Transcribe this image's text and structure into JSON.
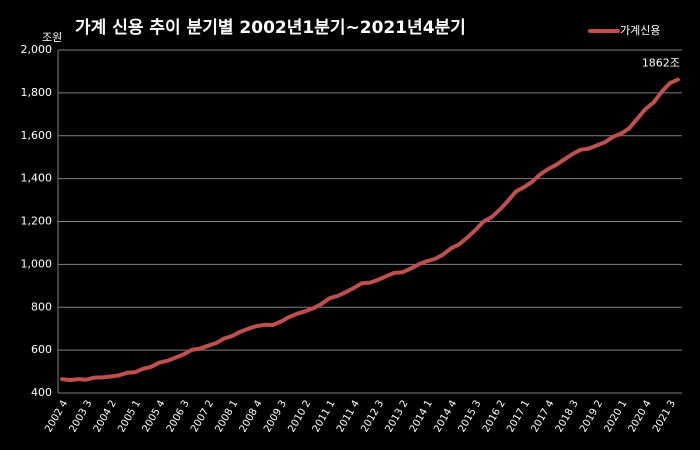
{
  "chart_data": {
    "type": "line",
    "title": "가계 신용 추이  분기별 2002년1분기~2021년4분기",
    "y_label": "조원",
    "categories": [
      "2002 4",
      null,
      null,
      "2003 3",
      null,
      null,
      "2004 2",
      null,
      null,
      "2005 1",
      null,
      null,
      "2005 4",
      null,
      null,
      "2006 3",
      null,
      null,
      "2007 2",
      null,
      null,
      "2008 1",
      null,
      null,
      "2008 4",
      null,
      null,
      "2009 3",
      null,
      null,
      "2010 2",
      null,
      null,
      "2011 1",
      null,
      null,
      "2011 4",
      null,
      null,
      "2012 3",
      null,
      null,
      "2013 2",
      null,
      null,
      "2014 1",
      null,
      null,
      "2014 4",
      null,
      null,
      "2015 3",
      null,
      null,
      "2016 2",
      null,
      null,
      "2017 1",
      null,
      null,
      "2017 4",
      null,
      null,
      "2018 3",
      null,
      null,
      "2019 2",
      null,
      null,
      "2020 1",
      null,
      null,
      "2020 4",
      null,
      null,
      "2021 3",
      null
    ],
    "series": [
      {
        "name": "가계신용",
        "color": "#c0504d",
        "values": [
          465,
          460,
          465,
          462,
          472,
          473,
          477,
          482,
          494,
          497,
          513,
          522,
          542,
          550,
          565,
          580,
          601,
          607,
          620,
          633,
          654,
          666,
          686,
          700,
          712,
          718,
          717,
          733,
          754,
          770,
          781,
          795,
          815,
          842,
          853,
          870,
          890,
          912,
          915,
          928,
          945,
          960,
          963,
          980,
          1000,
          1015,
          1025,
          1045,
          1075,
          1093,
          1125,
          1160,
          1200,
          1220,
          1255,
          1295,
          1340,
          1360,
          1385,
          1420,
          1445,
          1465,
          1490,
          1515,
          1535,
          1540,
          1555,
          1570,
          1595,
          1610,
          1635,
          1680,
          1725,
          1755,
          1805,
          1845,
          1862
        ],
        "value_labels": [
          null,
          null,
          null,
          null,
          null,
          null,
          null,
          null,
          null,
          null,
          null,
          null,
          null,
          null,
          null,
          null,
          null,
          null,
          null,
          null,
          null,
          null,
          null,
          null,
          null,
          null,
          null,
          null,
          null,
          null,
          null,
          null,
          null,
          null,
          null,
          null,
          null,
          null,
          null,
          null,
          null,
          null,
          null,
          null,
          null,
          null,
          null,
          null,
          null,
          null,
          null,
          null,
          null,
          null,
          null,
          null,
          null,
          null,
          null,
          null,
          null,
          null,
          null,
          null,
          null,
          null,
          null,
          null,
          null,
          null,
          null,
          null,
          null,
          null,
          null,
          null,
          "1862조"
        ]
      }
    ],
    "ylim": [
      400,
      2000
    ],
    "yticks": [
      400,
      600,
      800,
      {
        "value": 1000,
        "label": "1,000"
      },
      {
        "value": 1200,
        "label": "1,200"
      },
      {
        "value": 1400,
        "label": "1,400"
      },
      {
        "value": 1600,
        "label": "1,600"
      },
      {
        "value": 1800,
        "label": "1,800"
      },
      {
        "value": 2000,
        "label": "2,000"
      }
    ],
    "grid": true,
    "legend": "top-right"
  }
}
